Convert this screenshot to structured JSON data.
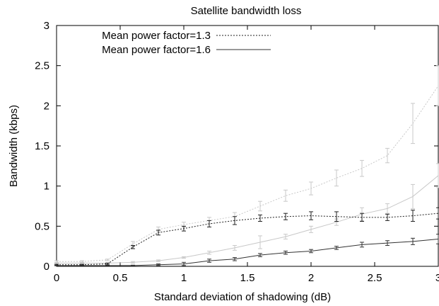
{
  "chart_data": {
    "type": "line",
    "title": "Satellite bandwidth loss",
    "xlabel": "Standard deviation of shadowing (dB)",
    "ylabel": "Bandwidth (kbps)",
    "xlim": [
      0,
      3
    ],
    "ylim": [
      0,
      3
    ],
    "xticks": [
      "0",
      "0.5",
      "1",
      "1.5",
      "2",
      "2.5",
      "3"
    ],
    "yticks": [
      "0",
      "0.5",
      "1",
      "1.5",
      "2",
      "2.5",
      "3"
    ],
    "grid": false,
    "legend_position": "top-left",
    "x": [
      0,
      0.2,
      0.4,
      0.6,
      0.8,
      1.0,
      1.2,
      1.4,
      1.6,
      1.8,
      2.0,
      2.2,
      2.4,
      2.6,
      2.8,
      3.0
    ],
    "series": [
      {
        "name": "Mean power factor=1.3",
        "legend_label": "Mean power factor=1.3",
        "style": "dotted",
        "color": "#222222",
        "values": [
          0.02,
          0.02,
          0.03,
          0.24,
          0.42,
          0.47,
          0.53,
          0.57,
          0.6,
          0.62,
          0.63,
          0.62,
          0.61,
          0.61,
          0.63,
          0.66
        ],
        "errors": [
          0.005,
          0.005,
          0.01,
          0.02,
          0.03,
          0.03,
          0.04,
          0.05,
          0.04,
          0.04,
          0.05,
          0.06,
          0.05,
          0.04,
          0.07,
          0.07
        ]
      },
      {
        "name": "Mean power factor=1.6",
        "legend_label": "Mean power factor=1.6",
        "style": "solid",
        "color": "#333333",
        "values": [
          0.01,
          0.01,
          0.01,
          0.01,
          0.02,
          0.03,
          0.07,
          0.09,
          0.14,
          0.17,
          0.19,
          0.23,
          0.27,
          0.29,
          0.31,
          0.34
        ],
        "errors": [
          0.003,
          0.003,
          0.003,
          0.005,
          0.01,
          0.02,
          0.02,
          0.02,
          0.02,
          0.02,
          0.02,
          0.02,
          0.03,
          0.03,
          0.04,
          0.06
        ]
      },
      {
        "style": "dotted",
        "color": "#c8c8c8",
        "values": [
          0.06,
          0.06,
          0.08,
          0.28,
          0.46,
          0.52,
          0.57,
          0.62,
          0.75,
          0.88,
          0.97,
          1.1,
          1.22,
          1.38,
          1.78,
          2.25
        ],
        "errors": [
          0.01,
          0.01,
          0.01,
          0.03,
          0.03,
          0.03,
          0.04,
          0.05,
          0.06,
          0.07,
          0.08,
          0.1,
          0.1,
          0.09,
          0.25,
          0.25
        ]
      },
      {
        "style": "solid",
        "color": "#c8c8c8",
        "values": [
          0.04,
          0.04,
          0.04,
          0.05,
          0.07,
          0.11,
          0.17,
          0.23,
          0.3,
          0.37,
          0.46,
          0.55,
          0.65,
          0.72,
          0.87,
          1.13
        ],
        "errors": [
          0.005,
          0.005,
          0.005,
          0.01,
          0.01,
          0.01,
          0.02,
          0.03,
          0.08,
          0.03,
          0.04,
          0.04,
          0.08,
          0.06,
          0.15,
          0.15
        ]
      }
    ]
  }
}
